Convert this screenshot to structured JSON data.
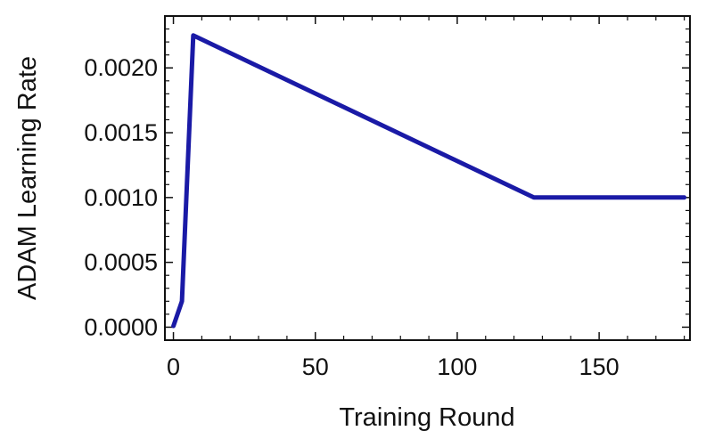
{
  "chart_data": {
    "type": "line",
    "xlabel": "Training Round",
    "ylabel": "ADAM Learning Rate",
    "xlim": [
      -3,
      182
    ],
    "ylim": [
      -0.0001,
      0.0024
    ],
    "xticks": [
      {
        "value": 0,
        "label": "0"
      },
      {
        "value": 50,
        "label": "50"
      },
      {
        "value": 100,
        "label": "100"
      },
      {
        "value": 150,
        "label": "150"
      }
    ],
    "yticks": [
      {
        "value": 0.0,
        "label": "0.0000"
      },
      {
        "value": 0.0005,
        "label": "0.0005"
      },
      {
        "value": 0.001,
        "label": "0.0010"
      },
      {
        "value": 0.0015,
        "label": "0.0015"
      },
      {
        "value": 0.002,
        "label": "0.0020"
      }
    ],
    "series": [
      {
        "color": "#1a1aa6",
        "points": [
          [
            0,
            1e-05
          ],
          [
            3,
            0.0002
          ],
          [
            7,
            0.00225
          ],
          [
            127,
            0.001
          ],
          [
            180,
            0.001
          ]
        ]
      }
    ],
    "grid": false,
    "frame": "box-with-minor-ticks"
  }
}
